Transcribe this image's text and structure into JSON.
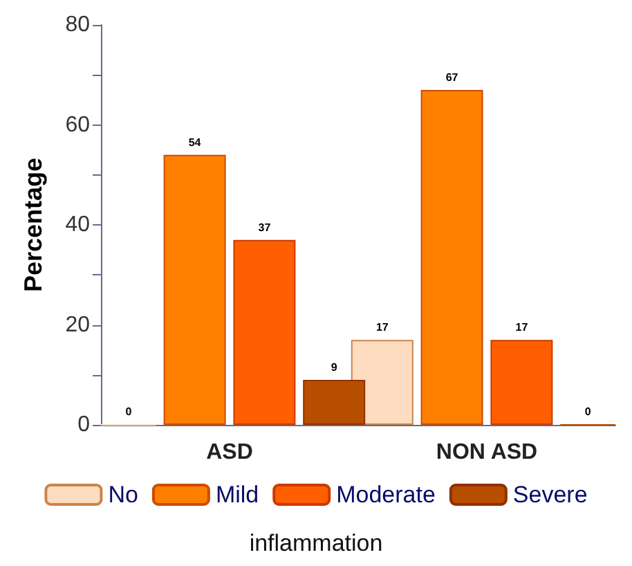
{
  "chart_data": {
    "type": "bar",
    "ylabel": "Percentage",
    "legend_title": "inflammation",
    "categories": [
      "ASD",
      "NON ASD"
    ],
    "series": [
      {
        "name": "No",
        "color": "#fddcc0",
        "values": [
          0,
          17
        ]
      },
      {
        "name": "Mild",
        "color": "#ff7f00",
        "values": [
          54,
          67
        ]
      },
      {
        "name": "Moderate",
        "color": "#ff5f00",
        "values": [
          37,
          17
        ]
      },
      {
        "name": "Severe",
        "color": "#b84f00",
        "values": [
          9,
          0
        ]
      }
    ],
    "ylim": [
      0,
      80
    ],
    "yticks": [
      0,
      {
        "value": 10,
        "label": null
      },
      20,
      {
        "value": 30,
        "label": null
      },
      40,
      {
        "value": 50,
        "label": null
      },
      60,
      {
        "value": 70,
        "label": null
      },
      80
    ],
    "data_labels": true,
    "grid": false,
    "legend": "bottom"
  }
}
